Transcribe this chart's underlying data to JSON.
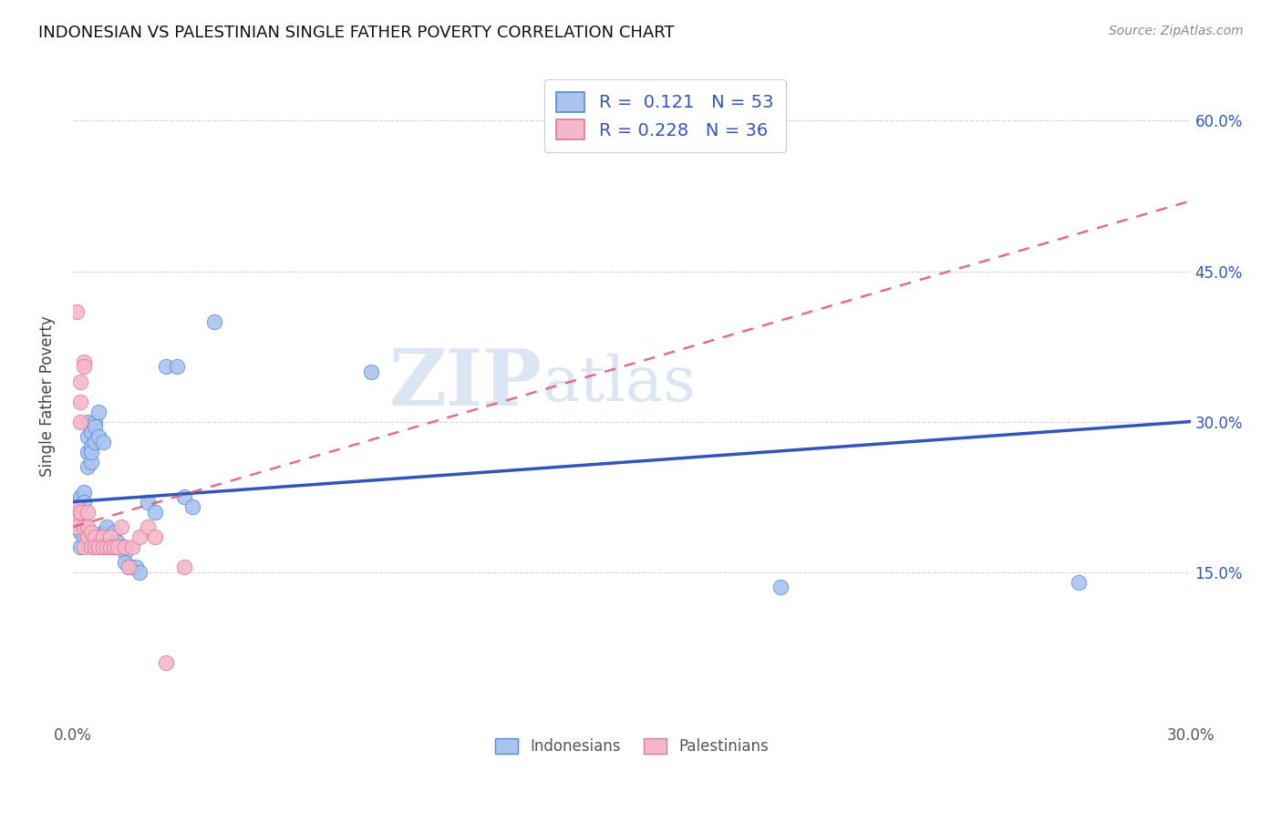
{
  "title": "INDONESIAN VS PALESTINIAN SINGLE FATHER POVERTY CORRELATION CHART",
  "source": "Source: ZipAtlas.com",
  "ylabel": "Single Father Poverty",
  "x_min": 0.0,
  "x_max": 0.3,
  "y_min": 0.0,
  "y_max": 0.65,
  "x_ticks": [
    0.0,
    0.05,
    0.1,
    0.15,
    0.2,
    0.25,
    0.3
  ],
  "x_tick_labels": [
    "0.0%",
    "",
    "",
    "",
    "",
    "",
    "30.0%"
  ],
  "y_ticks": [
    0.0,
    0.15,
    0.3,
    0.45,
    0.6
  ],
  "y_tick_labels_right": [
    "",
    "15.0%",
    "30.0%",
    "45.0%",
    "60.0%"
  ],
  "indonesian_color": "#aac4ee",
  "palestinian_color": "#f5b8c8",
  "indonesian_edge_color": "#5588dd",
  "palestinian_edge_color": "#dd7799",
  "indonesian_line_color": "#3355bb",
  "palestinian_line_color": "#dd5577",
  "r_indonesian": 0.121,
  "n_indonesian": 53,
  "r_palestinian": 0.228,
  "n_palestinian": 36,
  "indonesian_points": [
    [
      0.001,
      0.2
    ],
    [
      0.001,
      0.215
    ],
    [
      0.001,
      0.22
    ],
    [
      0.001,
      0.195
    ],
    [
      0.002,
      0.21
    ],
    [
      0.002,
      0.19
    ],
    [
      0.002,
      0.225
    ],
    [
      0.002,
      0.175
    ],
    [
      0.003,
      0.23
    ],
    [
      0.003,
      0.2
    ],
    [
      0.003,
      0.185
    ],
    [
      0.003,
      0.22
    ],
    [
      0.004,
      0.255
    ],
    [
      0.004,
      0.27
    ],
    [
      0.004,
      0.3
    ],
    [
      0.004,
      0.285
    ],
    [
      0.005,
      0.275
    ],
    [
      0.005,
      0.29
    ],
    [
      0.005,
      0.26
    ],
    [
      0.005,
      0.27
    ],
    [
      0.006,
      0.28
    ],
    [
      0.006,
      0.3
    ],
    [
      0.006,
      0.295
    ],
    [
      0.007,
      0.285
    ],
    [
      0.007,
      0.31
    ],
    [
      0.008,
      0.28
    ],
    [
      0.008,
      0.175
    ],
    [
      0.008,
      0.19
    ],
    [
      0.009,
      0.185
    ],
    [
      0.009,
      0.195
    ],
    [
      0.01,
      0.18
    ],
    [
      0.01,
      0.185
    ],
    [
      0.011,
      0.175
    ],
    [
      0.011,
      0.19
    ],
    [
      0.012,
      0.175
    ],
    [
      0.012,
      0.18
    ],
    [
      0.013,
      0.175
    ],
    [
      0.014,
      0.17
    ],
    [
      0.014,
      0.16
    ],
    [
      0.015,
      0.155
    ],
    [
      0.016,
      0.155
    ],
    [
      0.017,
      0.155
    ],
    [
      0.018,
      0.15
    ],
    [
      0.02,
      0.22
    ],
    [
      0.022,
      0.21
    ],
    [
      0.025,
      0.355
    ],
    [
      0.028,
      0.355
    ],
    [
      0.03,
      0.225
    ],
    [
      0.032,
      0.215
    ],
    [
      0.038,
      0.4
    ],
    [
      0.08,
      0.35
    ],
    [
      0.19,
      0.135
    ],
    [
      0.27,
      0.14
    ]
  ],
  "palestinian_points": [
    [
      0.001,
      0.2
    ],
    [
      0.001,
      0.215
    ],
    [
      0.001,
      0.195
    ],
    [
      0.001,
      0.41
    ],
    [
      0.002,
      0.34
    ],
    [
      0.002,
      0.32
    ],
    [
      0.002,
      0.3
    ],
    [
      0.002,
      0.21
    ],
    [
      0.003,
      0.36
    ],
    [
      0.003,
      0.195
    ],
    [
      0.003,
      0.355
    ],
    [
      0.003,
      0.175
    ],
    [
      0.004,
      0.195
    ],
    [
      0.004,
      0.185
    ],
    [
      0.004,
      0.21
    ],
    [
      0.005,
      0.175
    ],
    [
      0.005,
      0.19
    ],
    [
      0.006,
      0.185
    ],
    [
      0.006,
      0.175
    ],
    [
      0.007,
      0.175
    ],
    [
      0.008,
      0.185
    ],
    [
      0.008,
      0.175
    ],
    [
      0.009,
      0.175
    ],
    [
      0.01,
      0.185
    ],
    [
      0.01,
      0.175
    ],
    [
      0.011,
      0.175
    ],
    [
      0.012,
      0.175
    ],
    [
      0.013,
      0.195
    ],
    [
      0.014,
      0.175
    ],
    [
      0.015,
      0.155
    ],
    [
      0.016,
      0.175
    ],
    [
      0.018,
      0.185
    ],
    [
      0.02,
      0.195
    ],
    [
      0.022,
      0.185
    ],
    [
      0.025,
      0.06
    ],
    [
      0.03,
      0.155
    ]
  ],
  "watermark_zip": "ZIP",
  "watermark_atlas": "atlas",
  "background_color": "#ffffff",
  "grid_color": "#cccccc"
}
